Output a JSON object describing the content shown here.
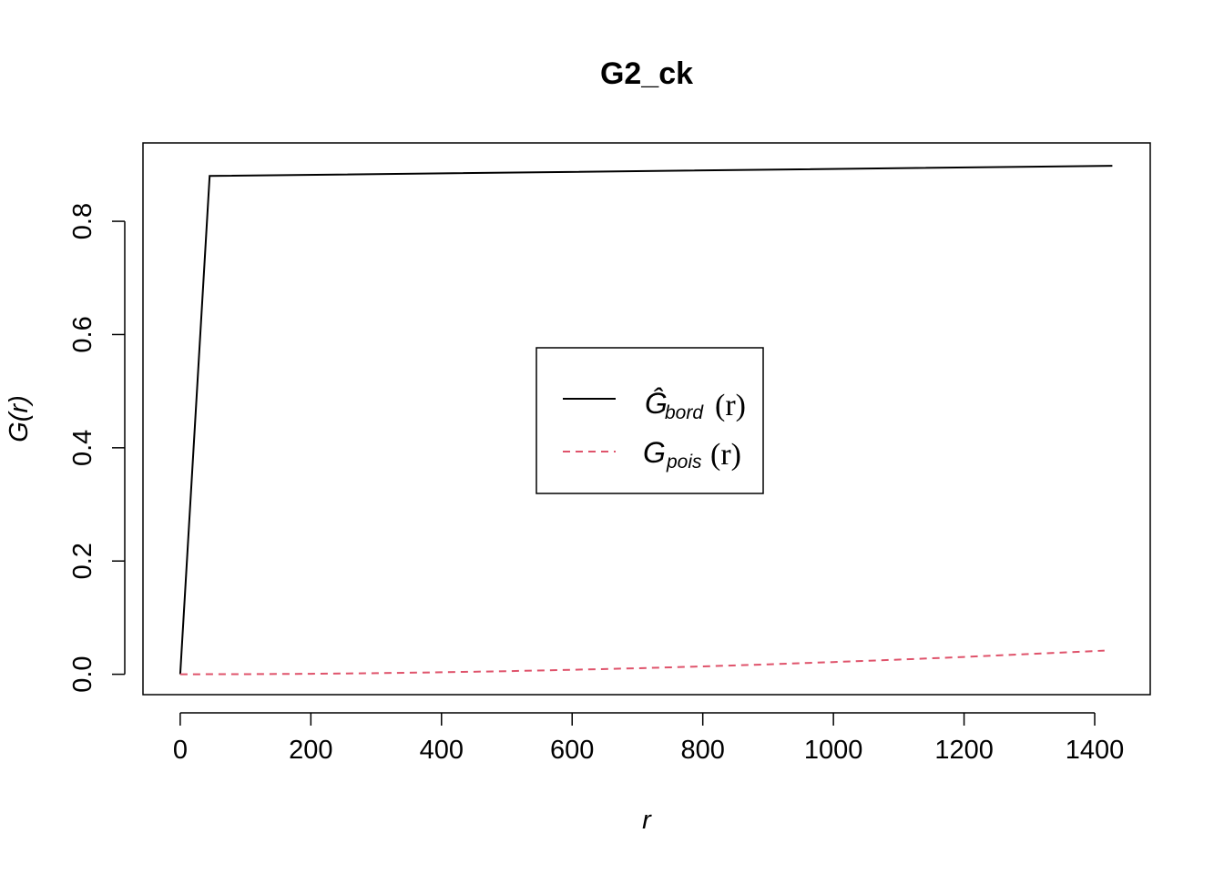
{
  "chart_data": {
    "type": "line",
    "title": "G2_ck",
    "xlabel": "r",
    "ylabel": "G(r)",
    "xlim": [
      -57,
      1485
    ],
    "ylim": [
      -0.036,
      0.9384
    ],
    "x_ticks": [
      0,
      200,
      400,
      600,
      800,
      1000,
      1200,
      1400
    ],
    "x_tick_labels": [
      "0",
      "200",
      "400",
      "600",
      "800",
      "1000",
      "1200",
      "1400"
    ],
    "y_ticks": [
      0.0,
      0.2,
      0.4,
      0.6,
      0.8
    ],
    "y_tick_labels": [
      "0.0",
      "0.2",
      "0.4",
      "0.6",
      "0.8"
    ],
    "grid": false,
    "legend_position": "center",
    "colors": {
      "bord": "#000000",
      "pois": "#DF536B"
    },
    "legend": [
      {
        "symbol": "Ĝ",
        "base": "G",
        "subscript": "bord",
        "arg": "(r)",
        "style": "solid",
        "color": "#000000"
      },
      {
        "symbol": "G",
        "base": "G",
        "subscript": "pois",
        "arg": "(r)",
        "style": "dashed",
        "color": "#DF536B"
      }
    ],
    "series": [
      {
        "name": "Ĝbord(r)",
        "x": [
          0,
          45,
          1427
        ],
        "y": [
          0.0,
          0.88,
          0.898
        ]
      },
      {
        "name": "Gpois(r)",
        "x": [
          0,
          100,
          200,
          300,
          400,
          500,
          600,
          700,
          800,
          900,
          1000,
          1100,
          1200,
          1300,
          1415
        ],
        "y": [
          0.0,
          0.0002,
          0.0009,
          0.002,
          0.0035,
          0.0055,
          0.0079,
          0.0107,
          0.0139,
          0.0175,
          0.0215,
          0.0259,
          0.0306,
          0.0357,
          0.0418
        ]
      }
    ]
  }
}
